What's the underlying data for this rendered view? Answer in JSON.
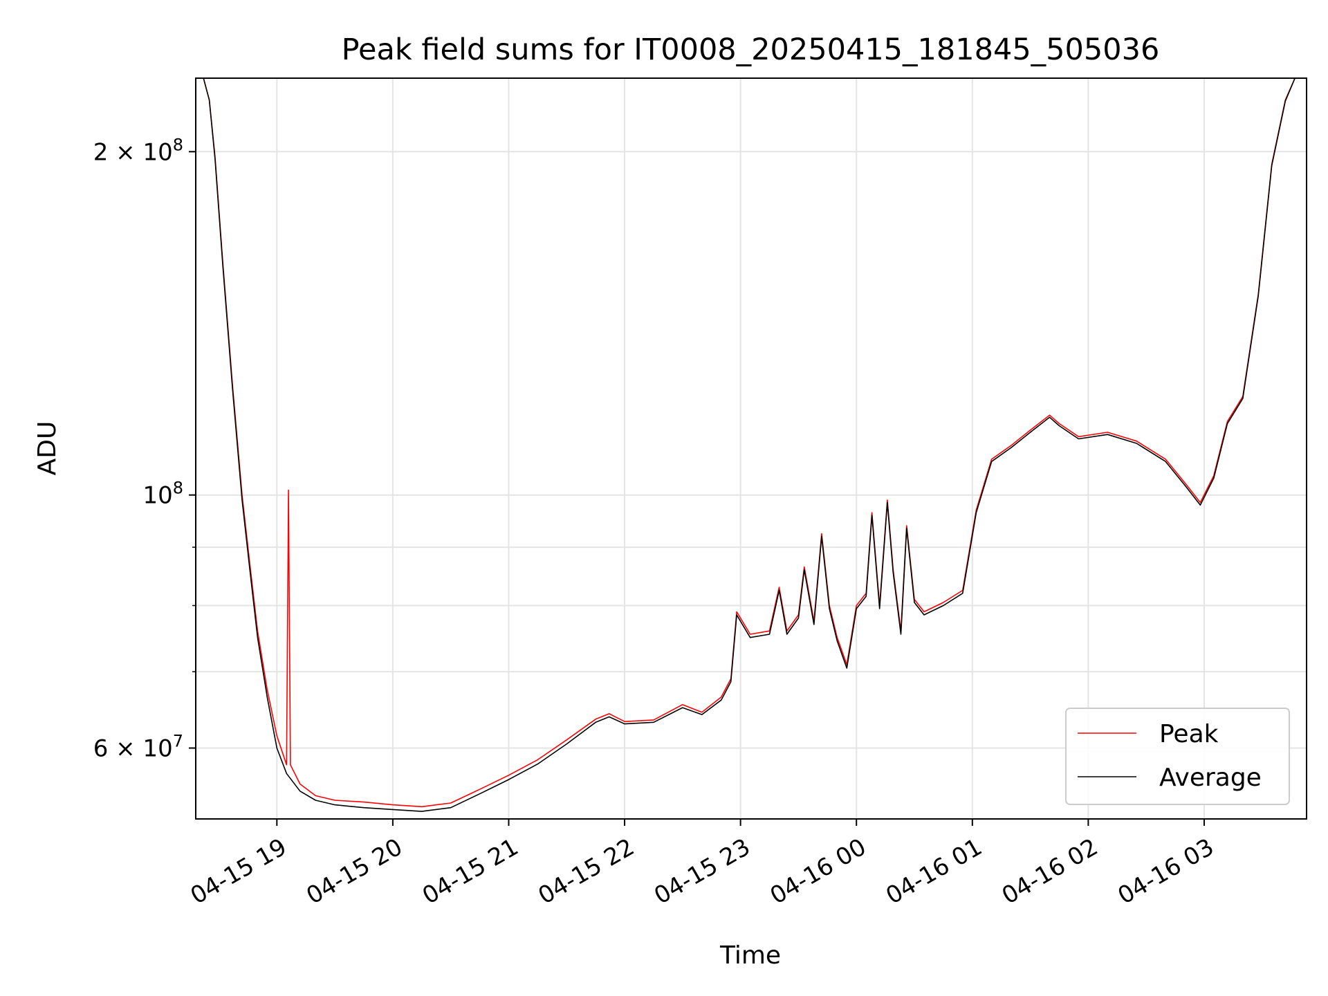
{
  "chart_data": {
    "type": "line",
    "title": "Peak field sums for IT0008_20250415_181845_505036",
    "xlabel": "Time",
    "ylabel": "ADU",
    "yscale": "log",
    "grid": true,
    "legend_position": "lower-right",
    "xlim": [
      "2025-04-15 18:18",
      "2025-04-16 03:53"
    ],
    "ylim": [
      52000000,
      232000000
    ],
    "x_ticks": [
      "04-15 19",
      "04-15 20",
      "04-15 21",
      "04-15 22",
      "04-15 23",
      "04-16 00",
      "04-16 01",
      "04-16 02",
      "04-16 03"
    ],
    "y_ticks": [
      {
        "value": 60000000,
        "label": "6 × 10^7"
      },
      {
        "value": 100000000,
        "label": "10^8"
      },
      {
        "value": 200000000,
        "label": "2 × 10^8"
      }
    ],
    "series": [
      {
        "name": "Peak",
        "color": "#ff0000",
        "points": [
          [
            "2025-04-15 18:18",
            232000000
          ],
          [
            "2025-04-15 18:22",
            232000000
          ],
          [
            "2025-04-15 18:25",
            222000000
          ],
          [
            "2025-04-15 18:28",
            198000000
          ],
          [
            "2025-04-15 18:32",
            160000000
          ],
          [
            "2025-04-15 18:37",
            125000000
          ],
          [
            "2025-04-15 18:42",
            100000000
          ],
          [
            "2025-04-15 18:46",
            87000000
          ],
          [
            "2025-04-15 18:50",
            76000000
          ],
          [
            "2025-04-15 18:55",
            67500000
          ],
          [
            "2025-04-15 19:00",
            61500000
          ],
          [
            "2025-04-15 19:05",
            58000000
          ],
          [
            "2025-04-15 19:06",
            101000000
          ],
          [
            "2025-04-15 19:07",
            58000000
          ],
          [
            "2025-04-15 19:12",
            55800000
          ],
          [
            "2025-04-15 19:20",
            54500000
          ],
          [
            "2025-04-15 19:30",
            54000000
          ],
          [
            "2025-04-15 19:45",
            53800000
          ],
          [
            "2025-04-15 20:00",
            53500000
          ],
          [
            "2025-04-15 20:15",
            53300000
          ],
          [
            "2025-04-15 20:30",
            53700000
          ],
          [
            "2025-04-15 20:45",
            55200000
          ],
          [
            "2025-04-15 21:00",
            56800000
          ],
          [
            "2025-04-15 21:15",
            58600000
          ],
          [
            "2025-04-15 21:30",
            61000000
          ],
          [
            "2025-04-15 21:45",
            63600000
          ],
          [
            "2025-04-15 21:52",
            64300000
          ],
          [
            "2025-04-15 22:00",
            63300000
          ],
          [
            "2025-04-15 22:15",
            63500000
          ],
          [
            "2025-04-15 22:30",
            65500000
          ],
          [
            "2025-04-15 22:40",
            64500000
          ],
          [
            "2025-04-15 22:50",
            66500000
          ],
          [
            "2025-04-15 22:55",
            69000000
          ],
          [
            "2025-04-15 22:58",
            79000000
          ],
          [
            "2025-04-15 23:05",
            75500000
          ],
          [
            "2025-04-15 23:15",
            76000000
          ],
          [
            "2025-04-15 23:20",
            83000000
          ],
          [
            "2025-04-15 23:24",
            76000000
          ],
          [
            "2025-04-15 23:30",
            78500000
          ],
          [
            "2025-04-15 23:33",
            86500000
          ],
          [
            "2025-04-15 23:38",
            77500000
          ],
          [
            "2025-04-15 23:42",
            92500000
          ],
          [
            "2025-04-15 23:46",
            80000000
          ],
          [
            "2025-04-15 23:50",
            75000000
          ],
          [
            "2025-04-15 23:55",
            71000000
          ],
          [
            "2025-04-16 00:00",
            80000000
          ],
          [
            "2025-04-16 00:05",
            82000000
          ],
          [
            "2025-04-16 00:08",
            96500000
          ],
          [
            "2025-04-16 00:12",
            80000000
          ],
          [
            "2025-04-16 00:16",
            99000000
          ],
          [
            "2025-04-16 00:19",
            86000000
          ],
          [
            "2025-04-16 00:23",
            76000000
          ],
          [
            "2025-04-16 00:26",
            94000000
          ],
          [
            "2025-04-16 00:30",
            81000000
          ],
          [
            "2025-04-16 00:35",
            79000000
          ],
          [
            "2025-04-16 00:45",
            80500000
          ],
          [
            "2025-04-16 00:55",
            82500000
          ],
          [
            "2025-04-16 01:02",
            97000000
          ],
          [
            "2025-04-16 01:10",
            107500000
          ],
          [
            "2025-04-16 01:20",
            110500000
          ],
          [
            "2025-04-16 01:30",
            114000000
          ],
          [
            "2025-04-16 01:40",
            117500000
          ],
          [
            "2025-04-16 01:45",
            115500000
          ],
          [
            "2025-04-16 01:55",
            112500000
          ],
          [
            "2025-04-16 02:10",
            113500000
          ],
          [
            "2025-04-16 02:25",
            111500000
          ],
          [
            "2025-04-16 02:40",
            107500000
          ],
          [
            "2025-04-16 02:50",
            102500000
          ],
          [
            "2025-04-16 02:58",
            98500000
          ],
          [
            "2025-04-16 03:05",
            104000000
          ],
          [
            "2025-04-16 03:12",
            116000000
          ],
          [
            "2025-04-16 03:20",
            122000000
          ],
          [
            "2025-04-16 03:28",
            150000000
          ],
          [
            "2025-04-16 03:35",
            195000000
          ],
          [
            "2025-04-16 03:42",
            222000000
          ],
          [
            "2025-04-16 03:47",
            232000000
          ],
          [
            "2025-04-16 03:53",
            232000000
          ]
        ]
      },
      {
        "name": "Average",
        "color": "#000000",
        "points": [
          [
            "2025-04-15 18:18",
            232000000
          ],
          [
            "2025-04-15 18:22",
            232000000
          ],
          [
            "2025-04-15 18:25",
            222000000
          ],
          [
            "2025-04-15 18:28",
            197000000
          ],
          [
            "2025-04-15 18:32",
            159000000
          ],
          [
            "2025-04-15 18:37",
            124000000
          ],
          [
            "2025-04-15 18:42",
            99000000
          ],
          [
            "2025-04-15 18:46",
            86000000
          ],
          [
            "2025-04-15 18:50",
            75000000
          ],
          [
            "2025-04-15 18:55",
            66500000
          ],
          [
            "2025-04-15 19:00",
            60000000
          ],
          [
            "2025-04-15 19:05",
            57000000
          ],
          [
            "2025-04-15 19:12",
            55000000
          ],
          [
            "2025-04-15 19:20",
            54000000
          ],
          [
            "2025-04-15 19:30",
            53500000
          ],
          [
            "2025-04-15 19:45",
            53200000
          ],
          [
            "2025-04-15 20:00",
            53000000
          ],
          [
            "2025-04-15 20:15",
            52800000
          ],
          [
            "2025-04-15 20:30",
            53200000
          ],
          [
            "2025-04-15 20:45",
            54700000
          ],
          [
            "2025-04-15 21:00",
            56300000
          ],
          [
            "2025-04-15 21:15",
            58100000
          ],
          [
            "2025-04-15 21:30",
            60500000
          ],
          [
            "2025-04-15 21:45",
            63200000
          ],
          [
            "2025-04-15 21:52",
            63900000
          ],
          [
            "2025-04-15 22:00",
            63000000
          ],
          [
            "2025-04-15 22:15",
            63200000
          ],
          [
            "2025-04-15 22:30",
            65100000
          ],
          [
            "2025-04-15 22:40",
            64200000
          ],
          [
            "2025-04-15 22:50",
            66100000
          ],
          [
            "2025-04-15 22:55",
            68600000
          ],
          [
            "2025-04-15 22:58",
            78500000
          ],
          [
            "2025-04-15 23:05",
            75000000
          ],
          [
            "2025-04-15 23:15",
            75500000
          ],
          [
            "2025-04-15 23:20",
            82500000
          ],
          [
            "2025-04-15 23:24",
            75500000
          ],
          [
            "2025-04-15 23:30",
            78000000
          ],
          [
            "2025-04-15 23:33",
            86000000
          ],
          [
            "2025-04-15 23:38",
            77000000
          ],
          [
            "2025-04-15 23:42",
            92000000
          ],
          [
            "2025-04-15 23:46",
            79500000
          ],
          [
            "2025-04-15 23:50",
            74500000
          ],
          [
            "2025-04-15 23:55",
            70500000
          ],
          [
            "2025-04-16 00:00",
            79500000
          ],
          [
            "2025-04-16 00:05",
            81500000
          ],
          [
            "2025-04-16 00:08",
            96000000
          ],
          [
            "2025-04-16 00:12",
            79500000
          ],
          [
            "2025-04-16 00:16",
            98500000
          ],
          [
            "2025-04-16 00:19",
            85500000
          ],
          [
            "2025-04-16 00:23",
            75500000
          ],
          [
            "2025-04-16 00:26",
            93500000
          ],
          [
            "2025-04-16 00:30",
            80500000
          ],
          [
            "2025-04-16 00:35",
            78500000
          ],
          [
            "2025-04-16 00:45",
            80000000
          ],
          [
            "2025-04-16 00:55",
            82000000
          ],
          [
            "2025-04-16 01:02",
            96500000
          ],
          [
            "2025-04-16 01:10",
            107000000
          ],
          [
            "2025-04-16 01:20",
            110000000
          ],
          [
            "2025-04-16 01:30",
            113500000
          ],
          [
            "2025-04-16 01:40",
            117000000
          ],
          [
            "2025-04-16 01:45",
            115000000
          ],
          [
            "2025-04-16 01:55",
            112000000
          ],
          [
            "2025-04-16 02:10",
            113000000
          ],
          [
            "2025-04-16 02:25",
            111000000
          ],
          [
            "2025-04-16 02:40",
            107000000
          ],
          [
            "2025-04-16 02:50",
            102000000
          ],
          [
            "2025-04-16 02:58",
            98000000
          ],
          [
            "2025-04-16 03:05",
            103500000
          ],
          [
            "2025-04-16 03:12",
            115500000
          ],
          [
            "2025-04-16 03:20",
            121500000
          ],
          [
            "2025-04-16 03:28",
            149500000
          ],
          [
            "2025-04-16 03:35",
            194500000
          ],
          [
            "2025-04-16 03:42",
            221500000
          ],
          [
            "2025-04-16 03:47",
            232000000
          ],
          [
            "2025-04-16 03:53",
            232000000
          ]
        ]
      }
    ]
  }
}
